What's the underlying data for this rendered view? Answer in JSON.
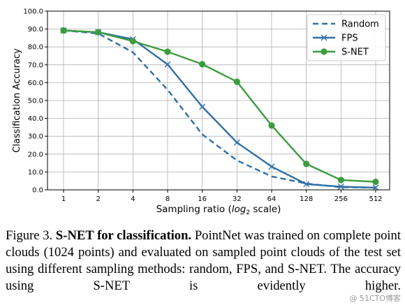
{
  "chart_data": {
    "type": "line",
    "x": [
      "1",
      "2",
      "4",
      "8",
      "16",
      "32",
      "64",
      "128",
      "256",
      "512"
    ],
    "xlabel_prefix": "Sampling ratio (",
    "xlabel_math": "log",
    "xlabel_sub": "2",
    "xlabel_suffix": " scale)",
    "ylabel": "Classification Accuracy",
    "ylim": [
      0,
      100
    ],
    "yticks": [
      "0.0",
      "10.0",
      "20.0",
      "30.0",
      "40.0",
      "50.0",
      "60.0",
      "70.0",
      "80.0",
      "90.0",
      "100.0"
    ],
    "grid": true,
    "legend_position": "top-right",
    "series": [
      {
        "name": "Random",
        "style": "dashed",
        "marker": "none",
        "color": "#2e6fa6",
        "values": [
          89.2,
          87.5,
          77.0,
          56.0,
          31.0,
          16.5,
          7.5,
          3.5,
          1.5,
          1.2
        ]
      },
      {
        "name": "FPS",
        "style": "solid",
        "marker": "x",
        "color": "#2e6fa6",
        "values": [
          89.2,
          88.2,
          84.3,
          70.2,
          46.5,
          26.5,
          13.0,
          3.2,
          1.8,
          1.2
        ]
      },
      {
        "name": "S-NET",
        "style": "solid",
        "marker": "circle",
        "color": "#3c9c3f",
        "values": [
          89.2,
          88.2,
          83.2,
          77.3,
          70.3,
          60.5,
          36.0,
          14.5,
          5.5,
          4.5
        ]
      }
    ]
  },
  "caption": {
    "label": "Figure 3.",
    "bold": "S-NET for classification.",
    "text": "PointNet was trained on complete point clouds (1024 points) and evaluated on sampled point clouds of the test set using different sampling methods: random, FPS, and S-NET. The accuracy using S-NET is evidently higher."
  },
  "watermark": "@ 51CTO博客"
}
